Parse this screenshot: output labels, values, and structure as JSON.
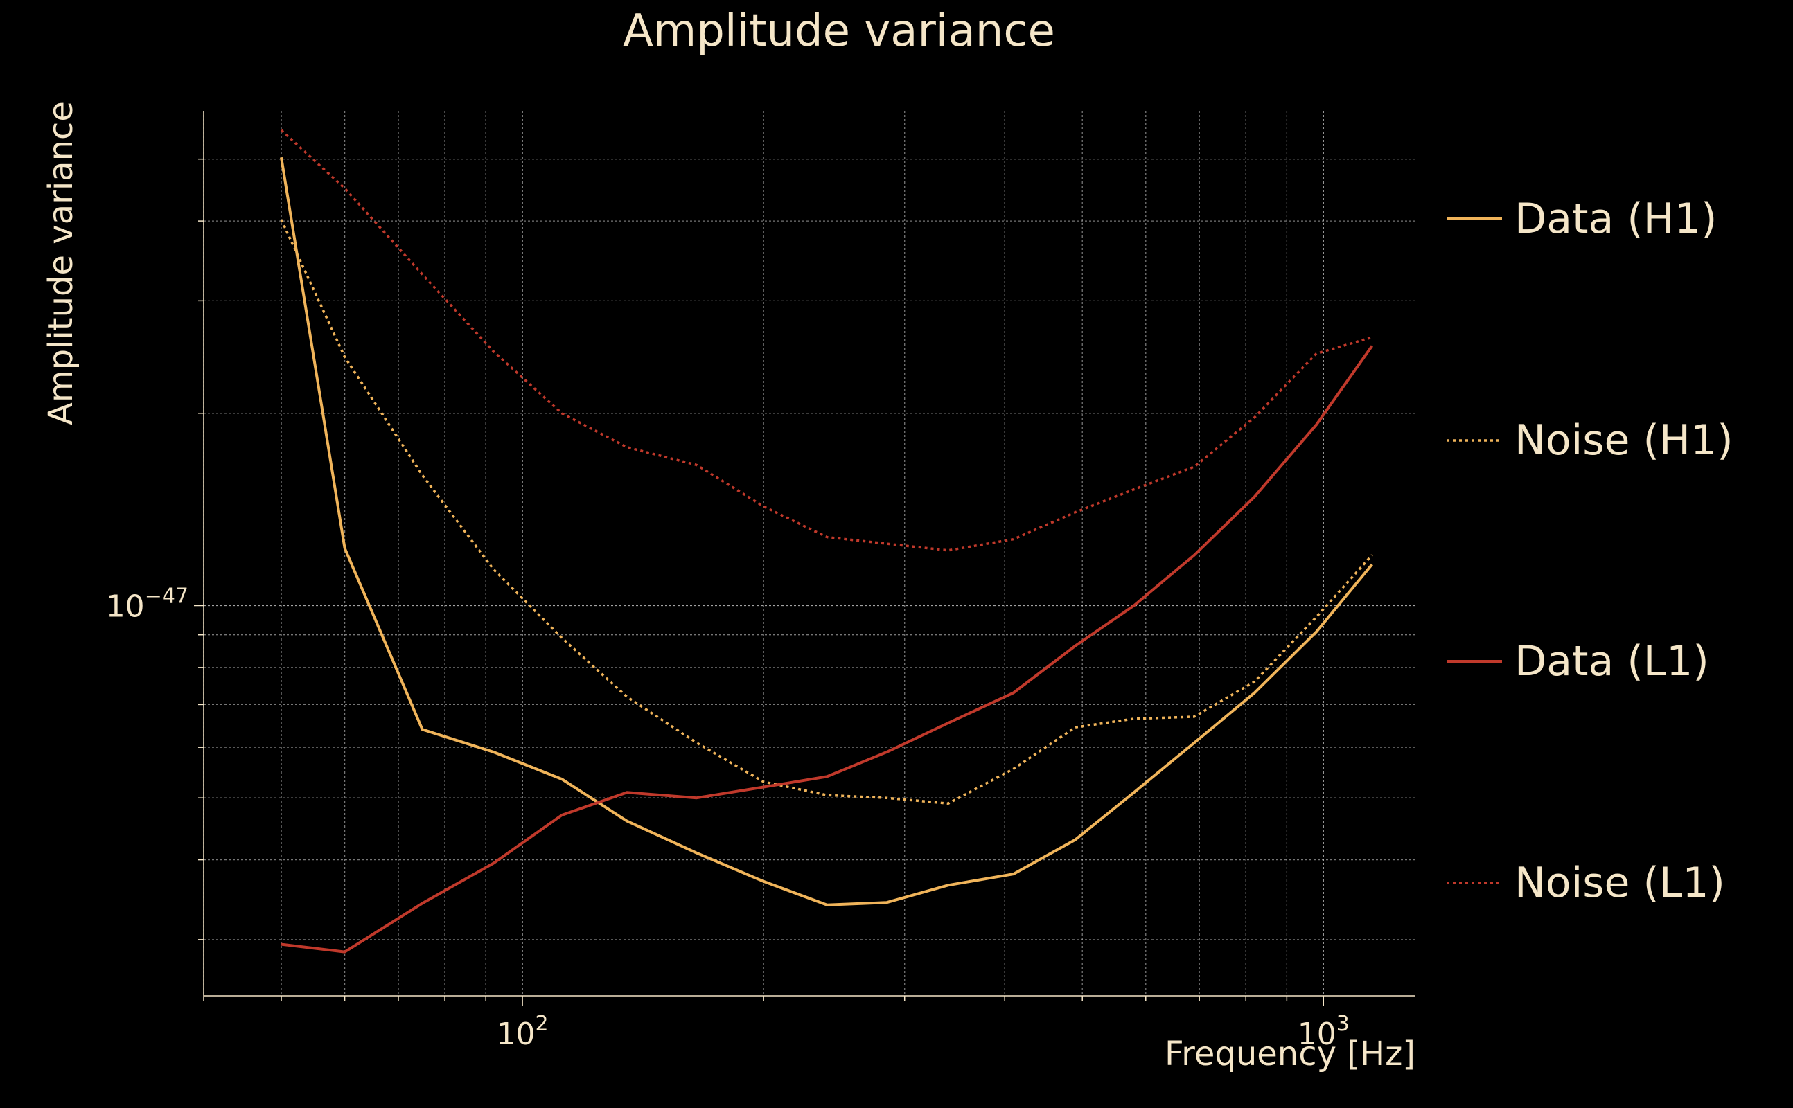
{
  "chart_data": {
    "type": "line",
    "title": "Amplitude variance",
    "xlabel": "Frequency [Hz]",
    "ylabel": "Amplitude variance",
    "xscale": "log",
    "yscale": "log",
    "xlim": [
      40,
      1300
    ],
    "ylim": [
      2.45e-48,
      5.95e-47
    ],
    "x_tick_labels": [
      {
        "value": 100,
        "base": "10",
        "exp": "2"
      },
      {
        "value": 1000,
        "base": "10",
        "exp": "3"
      }
    ],
    "y_tick_labels": [
      {
        "value": 1e-47,
        "base": "10",
        "exp": "−47"
      }
    ],
    "grid": true,
    "legend_position": "right",
    "colors": {
      "background": "#000000",
      "text": "#f5e6c8",
      "grid": "#d8d8d8",
      "H1": "#f0b45a",
      "L1": "#c0392b"
    },
    "series": [
      {
        "name": "Data (H1)",
        "color": "#f0b45a",
        "dash": "solid",
        "points": [
          [
            50,
            5.03e-47
          ],
          [
            60,
            1.23e-47
          ],
          [
            75,
            6.4e-48
          ],
          [
            92,
            5.9e-48
          ],
          [
            112,
            5.35e-48
          ],
          [
            135,
            4.6e-48
          ],
          [
            165,
            4.1e-48
          ],
          [
            200,
            3.7e-48
          ],
          [
            240,
            3.4e-48
          ],
          [
            285,
            3.43e-48
          ],
          [
            340,
            3.65e-48
          ],
          [
            410,
            3.8e-48
          ],
          [
            490,
            4.3e-48
          ],
          [
            580,
            5.1e-48
          ],
          [
            690,
            6.1e-48
          ],
          [
            820,
            7.3e-48
          ],
          [
            980,
            9.1e-48
          ],
          [
            1150,
            1.16e-47
          ]
        ]
      },
      {
        "name": "Noise (H1)",
        "color": "#f0b45a",
        "dash": "dotted",
        "points": [
          [
            50,
            4.02e-47
          ],
          [
            60,
            2.45e-47
          ],
          [
            75,
            1.6e-47
          ],
          [
            92,
            1.14e-47
          ],
          [
            112,
            8.9e-48
          ],
          [
            135,
            7.2e-48
          ],
          [
            165,
            6.1e-48
          ],
          [
            200,
            5.3e-48
          ],
          [
            240,
            5.05e-48
          ],
          [
            285,
            5e-48
          ],
          [
            340,
            4.9e-48
          ],
          [
            410,
            5.55e-48
          ],
          [
            490,
            6.45e-48
          ],
          [
            580,
            6.65e-48
          ],
          [
            690,
            6.7e-48
          ],
          [
            820,
            7.6e-48
          ],
          [
            980,
            9.6e-48
          ],
          [
            1150,
            1.2e-47
          ]
        ]
      },
      {
        "name": "Data (L1)",
        "color": "#c0392b",
        "dash": "solid",
        "points": [
          [
            50,
            2.95e-48
          ],
          [
            60,
            2.87e-48
          ],
          [
            75,
            3.42e-48
          ],
          [
            92,
            3.95e-48
          ],
          [
            112,
            4.7e-48
          ],
          [
            135,
            5.1e-48
          ],
          [
            165,
            5e-48
          ],
          [
            200,
            5.2e-48
          ],
          [
            240,
            5.4e-48
          ],
          [
            285,
            5.9e-48
          ],
          [
            340,
            6.55e-48
          ],
          [
            410,
            7.3e-48
          ],
          [
            490,
            8.65e-48
          ],
          [
            580,
            1e-47
          ],
          [
            690,
            1.2e-47
          ],
          [
            820,
            1.48e-47
          ],
          [
            980,
            1.92e-47
          ],
          [
            1150,
            2.55e-47
          ]
        ]
      },
      {
        "name": "Noise (L1)",
        "color": "#c0392b",
        "dash": "dotted",
        "points": [
          [
            50,
            5.55e-47
          ],
          [
            60,
            4.5e-47
          ],
          [
            75,
            3.3e-47
          ],
          [
            92,
            2.5e-47
          ],
          [
            112,
            2e-47
          ],
          [
            135,
            1.77e-47
          ],
          [
            165,
            1.66e-47
          ],
          [
            200,
            1.43e-47
          ],
          [
            240,
            1.28e-47
          ],
          [
            285,
            1.25e-47
          ],
          [
            340,
            1.22e-47
          ],
          [
            410,
            1.27e-47
          ],
          [
            490,
            1.4e-47
          ],
          [
            580,
            1.52e-47
          ],
          [
            690,
            1.65e-47
          ],
          [
            820,
            1.97e-47
          ],
          [
            980,
            2.48e-47
          ],
          [
            1150,
            2.63e-47
          ]
        ]
      }
    ]
  }
}
